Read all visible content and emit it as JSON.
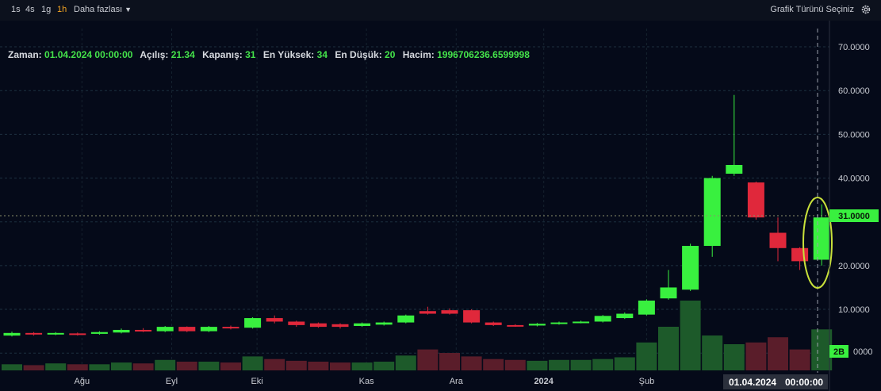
{
  "toolbar": {
    "timeframes": [
      "1s",
      "4s",
      "1g",
      "1h"
    ],
    "active_timeframe": "1h",
    "more_label": "Daha fazlası",
    "chart_type_label": "Grafik Türünü Seçiniz"
  },
  "legend": {
    "zaman_label": "Zaman:",
    "zaman_value": "01.04.2024 00:00:00",
    "acilis_label": "Açılış:",
    "acilis_value": "21.34",
    "kapanis_label": "Kapanış:",
    "kapanis_value": "31",
    "yuksek_label": "En Yüksek:",
    "yuksek_value": "34",
    "dusuk_label": "En Düşük:",
    "dusuk_value": "20",
    "hacim_label": "Hacim:",
    "hacim_value": "1996706236.6599998"
  },
  "colors": {
    "up": "#39f03f",
    "down": "#e0283b",
    "volume_up": "#1d5a2a",
    "volume_down": "#5a1d2a",
    "highlight": "#c8e03a",
    "background": "#050a19"
  },
  "chart_data": {
    "type": "candlestick",
    "x_tick_labels": [
      "Ağu",
      "Eyl",
      "Eki",
      "Kas",
      "Ara",
      "2024",
      "Şub"
    ],
    "y_tick_labels": [
      "70.0000",
      "60.0000",
      "50.0000",
      "40.0000",
      "31.0000",
      "20.0000",
      "10.0000"
    ],
    "ylim": [
      -6,
      77
    ],
    "grid": true,
    "current_price_label": "31.0000",
    "volume_badge_label": "2B",
    "crosshair_date_label": "01.04.2024",
    "crosshair_time_label": "00:00:00",
    "candles": [
      {
        "o": 4.0,
        "c": 4.6,
        "h": 4.9,
        "l": 3.8,
        "v": 0.7
      },
      {
        "o": 4.6,
        "c": 4.3,
        "h": 4.8,
        "l": 4.0,
        "v": 0.6
      },
      {
        "o": 4.3,
        "c": 4.6,
        "h": 4.8,
        "l": 4.1,
        "v": 0.8
      },
      {
        "o": 4.5,
        "c": 4.2,
        "h": 4.7,
        "l": 4.0,
        "v": 0.7
      },
      {
        "o": 4.4,
        "c": 4.8,
        "h": 5.0,
        "l": 4.2,
        "v": 0.7
      },
      {
        "o": 4.7,
        "c": 5.3,
        "h": 5.6,
        "l": 4.5,
        "v": 0.9
      },
      {
        "o": 5.3,
        "c": 5.0,
        "h": 5.7,
        "l": 4.8,
        "v": 0.8
      },
      {
        "o": 5.0,
        "c": 6.0,
        "h": 6.2,
        "l": 4.8,
        "v": 1.2
      },
      {
        "o": 6.0,
        "c": 5.0,
        "h": 6.1,
        "l": 4.8,
        "v": 1.0
      },
      {
        "o": 5.0,
        "c": 6.0,
        "h": 6.2,
        "l": 4.8,
        "v": 1.0
      },
      {
        "o": 6.0,
        "c": 5.7,
        "h": 6.3,
        "l": 5.4,
        "v": 0.9
      },
      {
        "o": 5.8,
        "c": 8.0,
        "h": 8.2,
        "l": 5.6,
        "v": 1.6
      },
      {
        "o": 8.0,
        "c": 7.2,
        "h": 8.6,
        "l": 6.8,
        "v": 1.3
      },
      {
        "o": 7.2,
        "c": 6.4,
        "h": 7.4,
        "l": 6.0,
        "v": 1.1
      },
      {
        "o": 6.8,
        "c": 6.0,
        "h": 7.0,
        "l": 5.8,
        "v": 1.0
      },
      {
        "o": 6.6,
        "c": 6.0,
        "h": 6.8,
        "l": 5.6,
        "v": 0.9
      },
      {
        "o": 6.2,
        "c": 6.8,
        "h": 7.0,
        "l": 6.0,
        "v": 0.9
      },
      {
        "o": 6.5,
        "c": 7.0,
        "h": 7.2,
        "l": 6.3,
        "v": 1.0
      },
      {
        "o": 7.0,
        "c": 8.6,
        "h": 8.8,
        "l": 6.8,
        "v": 1.7
      },
      {
        "o": 9.6,
        "c": 9.0,
        "h": 10.6,
        "l": 8.8,
        "v": 2.4
      },
      {
        "o": 9.8,
        "c": 9.0,
        "h": 10.2,
        "l": 8.8,
        "v": 2.0
      },
      {
        "o": 9.8,
        "c": 7.0,
        "h": 10.0,
        "l": 6.8,
        "v": 1.6
      },
      {
        "o": 7.0,
        "c": 6.4,
        "h": 7.2,
        "l": 6.2,
        "v": 1.3
      },
      {
        "o": 6.4,
        "c": 6.2,
        "h": 6.6,
        "l": 6.0,
        "v": 1.2
      },
      {
        "o": 6.3,
        "c": 6.7,
        "h": 6.9,
        "l": 6.1,
        "v": 1.1
      },
      {
        "o": 6.7,
        "c": 7.0,
        "h": 7.2,
        "l": 6.5,
        "v": 1.2
      },
      {
        "o": 7.0,
        "c": 7.2,
        "h": 7.4,
        "l": 6.8,
        "v": 1.2
      },
      {
        "o": 7.2,
        "c": 8.5,
        "h": 8.7,
        "l": 7.0,
        "v": 1.3
      },
      {
        "o": 8.0,
        "c": 9.0,
        "h": 9.3,
        "l": 7.8,
        "v": 1.5
      },
      {
        "o": 8.8,
        "c": 12.0,
        "h": 12.3,
        "l": 8.6,
        "v": 3.2
      },
      {
        "o": 12.5,
        "c": 15.0,
        "h": 19.0,
        "l": 12.2,
        "v": 5.0
      },
      {
        "o": 14.5,
        "c": 24.5,
        "h": 25.0,
        "l": 14.2,
        "v": 8.0
      },
      {
        "o": 24.5,
        "c": 40.0,
        "h": 40.5,
        "l": 22.0,
        "v": 4.0
      },
      {
        "o": 41.0,
        "c": 43.0,
        "h": 59.0,
        "l": 40.5,
        "v": 3.0
      },
      {
        "o": 39.0,
        "c": 31.0,
        "h": 39.2,
        "l": 30.5,
        "v": 3.2
      },
      {
        "o": 27.5,
        "c": 24.0,
        "h": 31.0,
        "l": 21.0,
        "v": 3.8
      },
      {
        "o": 24.0,
        "c": 21.0,
        "h": 24.2,
        "l": 19.0,
        "v": 2.4
      },
      {
        "o": 21.34,
        "c": 31.0,
        "h": 34.0,
        "l": 20.0,
        "v": 4.7
      }
    ]
  }
}
